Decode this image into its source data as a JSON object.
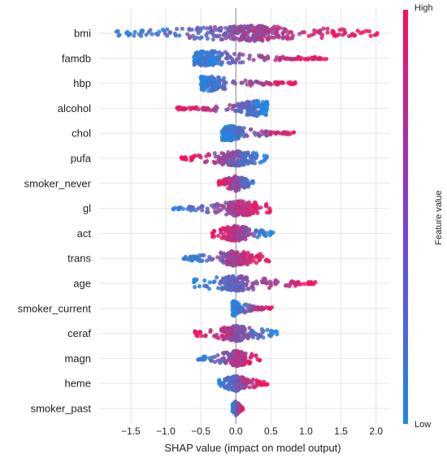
{
  "chart_data": {
    "type": "scatter",
    "subtype": "shap_beeswarm",
    "xlabel": "SHAP value (impact on model output)",
    "xlim": [
      -1.95,
      2.2
    ],
    "xticks": [
      -1.5,
      -1.0,
      -0.5,
      0.0,
      0.5,
      1.0,
      1.5,
      2.0
    ],
    "xtick_labels": [
      "−1.5",
      "−1.0",
      "−0.5",
      "0.0",
      "0.5",
      "1.0",
      "1.5",
      "2.0"
    ],
    "grid": true,
    "vertical_reference_line": 0.0,
    "colorbar": {
      "label": "Feature value",
      "high_label": "High",
      "low_label": "Low",
      "low_color": "#1e88e5",
      "high_color": "#ff0d57"
    },
    "features": [
      {
        "name": "bmi",
        "min": -1.75,
        "max": 2.05,
        "peak": 0.22,
        "low_side": "left",
        "spread": 1.0
      },
      {
        "name": "famdb",
        "min": -0.6,
        "max": 1.3,
        "peak": -0.4,
        "low_side": "left",
        "spread": 0.55
      },
      {
        "name": "hbp",
        "min": -0.5,
        "max": 0.85,
        "peak": -0.38,
        "low_side": "left",
        "spread": 0.45
      },
      {
        "name": "alcohol",
        "min": -0.85,
        "max": 0.45,
        "peak": 0.3,
        "low_side": "right",
        "spread": 0.45
      },
      {
        "name": "chol",
        "min": -0.2,
        "max": 0.85,
        "peak": -0.1,
        "low_side": "left",
        "spread": 0.35
      },
      {
        "name": "pufa",
        "min": -0.8,
        "max": 0.45,
        "peak": 0.0,
        "low_side": "right",
        "spread": 0.6
      },
      {
        "name": "smoker_never",
        "min": -0.25,
        "max": 0.25,
        "peak": 0.0,
        "low_side": "right",
        "spread": 0.4
      },
      {
        "name": "gl",
        "min": -0.9,
        "max": 0.5,
        "peak": 0.05,
        "low_side": "left",
        "spread": 0.45
      },
      {
        "name": "act",
        "min": -0.35,
        "max": 0.55,
        "peak": 0.0,
        "low_side": "right",
        "spread": 0.35
      },
      {
        "name": "trans",
        "min": -0.75,
        "max": 0.5,
        "peak": 0.0,
        "low_side": "left",
        "spread": 0.45
      },
      {
        "name": "age",
        "min": -0.6,
        "max": 1.15,
        "peak": 0.0,
        "low_side": "left",
        "spread": 0.45
      },
      {
        "name": "smoker_current",
        "min": -0.05,
        "max": 0.55,
        "peak": -0.05,
        "low_side": "left",
        "spread": 0.25
      },
      {
        "name": "ceraf",
        "min": -0.6,
        "max": 0.6,
        "peak": 0.0,
        "low_side": "right",
        "spread": 0.45
      },
      {
        "name": "magn",
        "min": -0.55,
        "max": 0.35,
        "peak": 0.0,
        "low_side": "left",
        "spread": 0.4
      },
      {
        "name": "heme",
        "min": -0.25,
        "max": 0.45,
        "peak": 0.0,
        "low_side": "left",
        "spread": 0.35
      },
      {
        "name": "smoker_past",
        "min": -0.05,
        "max": 0.1,
        "peak": 0.0,
        "low_side": "left",
        "spread": 0.25
      }
    ]
  }
}
